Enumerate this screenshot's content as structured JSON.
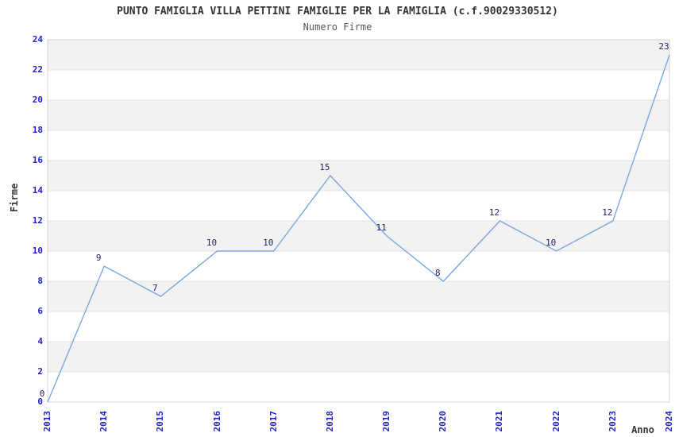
{
  "chart_data": {
    "type": "line",
    "title": "PUNTO FAMIGLIA VILLA PETTINI FAMIGLIE PER LA FAMIGLIA (c.f.90029330512)",
    "subtitle": "Numero Firme",
    "xlabel": "Anno",
    "ylabel": "Firme",
    "categories": [
      "2013",
      "2014",
      "2015",
      "2016",
      "2017",
      "2018",
      "2019",
      "2020",
      "2021",
      "2022",
      "2023",
      "2024"
    ],
    "values": [
      0,
      9,
      7,
      10,
      10,
      15,
      11,
      8,
      12,
      10,
      12,
      23
    ],
    "ylim": [
      0,
      24
    ],
    "ytick_step": 2,
    "grid": true,
    "legend": "none",
    "data_labels_visible": true,
    "colors": {
      "line": "#7aa7dd",
      "tick_label": "#2222cc",
      "data_label": "#222266",
      "band": "#f2f2f2",
      "grid_line": "#e3e3e3",
      "plot_border": "#d4d4d4",
      "title": "#333333",
      "subtitle": "#555555",
      "axis_label": "#333333",
      "background": "#ffffff"
    }
  }
}
